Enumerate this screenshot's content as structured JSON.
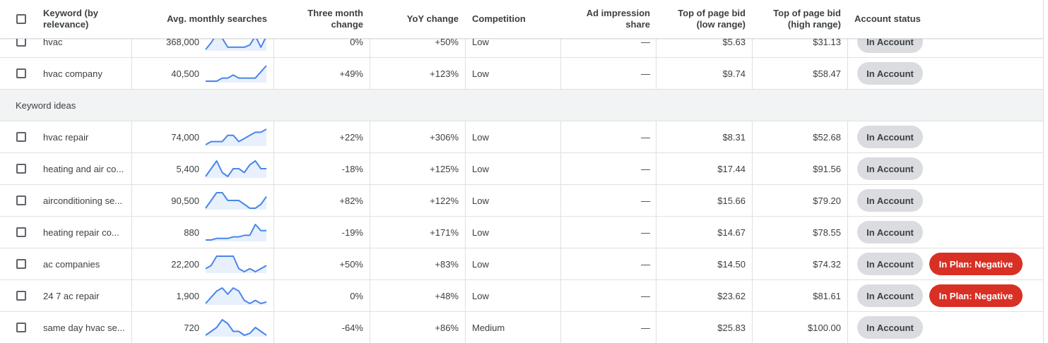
{
  "header": {
    "keyword": "Keyword (by relevance)",
    "avg_searches": "Avg. monthly searches",
    "three_month": "Three month change",
    "yoy": "YoY change",
    "competition": "Competition",
    "ad_impression": "Ad impression share",
    "bid_low": "Top of page bid (low range)",
    "bid_high": "Top of page bid (high range)",
    "account_status": "Account status"
  },
  "group_label": "Keyword ideas",
  "colors": {
    "spark_line": "#4a86e8",
    "spark_fill": "#e8f0fe",
    "negative_chip": "#d93025",
    "account_chip": "#dadce0"
  },
  "provided_rows": [
    {
      "keyword": "hvac",
      "searches": "368,000",
      "trend": [
        2,
        5,
        9,
        7,
        3,
        3,
        3,
        3,
        4,
        8,
        3,
        8
      ],
      "three_month": "0%",
      "yoy": "+50%",
      "competition": "Low",
      "impression": "—",
      "bid_low": "$5.63",
      "bid_high": "$31.13",
      "status": [
        "In Account"
      ]
    },
    {
      "keyword": "hvac company",
      "searches": "40,500",
      "trend": [
        0,
        0,
        0,
        1,
        1,
        2,
        1,
        1,
        1,
        1,
        3,
        5
      ],
      "three_month": "+49%",
      "yoy": "+123%",
      "competition": "Low",
      "impression": "—",
      "bid_low": "$9.74",
      "bid_high": "$58.47",
      "status": [
        "In Account"
      ]
    }
  ],
  "idea_rows": [
    {
      "keyword": "hvac repair",
      "searches": "74,000",
      "trend": [
        0,
        1,
        1,
        1,
        3,
        3,
        1,
        2,
        3,
        4,
        4,
        5
      ],
      "three_month": "+22%",
      "yoy": "+306%",
      "competition": "Low",
      "impression": "—",
      "bid_low": "$8.31",
      "bid_high": "$52.68",
      "status": [
        "In Account"
      ]
    },
    {
      "keyword": "heating and air co...",
      "searches": "5,400",
      "trend": [
        0,
        2,
        4,
        1,
        0,
        2,
        2,
        1,
        3,
        4,
        2,
        2
      ],
      "three_month": "-18%",
      "yoy": "+125%",
      "competition": "Low",
      "impression": "—",
      "bid_low": "$17.44",
      "bid_high": "$91.56",
      "status": [
        "In Account"
      ]
    },
    {
      "keyword": "airconditioning se...",
      "searches": "90,500",
      "trend": [
        1,
        3,
        5,
        5,
        3,
        3,
        3,
        2,
        1,
        1,
        2,
        4
      ],
      "three_month": "+82%",
      "yoy": "+122%",
      "competition": "Low",
      "impression": "—",
      "bid_low": "$15.66",
      "bid_high": "$79.20",
      "status": [
        "In Account"
      ]
    },
    {
      "keyword": "heating repair co...",
      "searches": "880",
      "trend": [
        0,
        0,
        0.5,
        0.5,
        0.5,
        1,
        1,
        1.5,
        1.5,
        5,
        3,
        3
      ],
      "three_month": "-19%",
      "yoy": "+171%",
      "competition": "Low",
      "impression": "—",
      "bid_low": "$14.67",
      "bid_high": "$78.55",
      "status": [
        "In Account"
      ]
    },
    {
      "keyword": "ac companies",
      "searches": "22,200",
      "trend": [
        1,
        2,
        5,
        5,
        5,
        5,
        1,
        0,
        1,
        0,
        1,
        2
      ],
      "three_month": "+50%",
      "yoy": "+83%",
      "competition": "Low",
      "impression": "—",
      "bid_low": "$14.50",
      "bid_high": "$74.32",
      "status": [
        "In Account",
        "In Plan: Negative"
      ]
    },
    {
      "keyword": "24 7 ac repair",
      "searches": "1,900",
      "trend": [
        0,
        2,
        4,
        5,
        3,
        5,
        4,
        1,
        0,
        1,
        0,
        0.5
      ],
      "three_month": "0%",
      "yoy": "+48%",
      "competition": "Low",
      "impression": "—",
      "bid_low": "$23.62",
      "bid_high": "$81.61",
      "status": [
        "In Account",
        "In Plan: Negative"
      ]
    },
    {
      "keyword": "same day hvac se...",
      "searches": "720",
      "trend": [
        0,
        1,
        2,
        4,
        3,
        1,
        1,
        0,
        0.5,
        2,
        1,
        0
      ],
      "three_month": "-64%",
      "yoy": "+86%",
      "competition": "Medium",
      "impression": "—",
      "bid_low": "$25.83",
      "bid_high": "$100.00",
      "status": [
        "In Account"
      ]
    }
  ]
}
